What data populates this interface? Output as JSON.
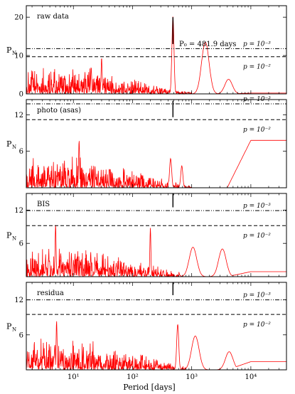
{
  "chart_data": {
    "type": "line",
    "shared_xaxis": {
      "label": "Period [days]",
      "scale": "log",
      "xlim": [
        1.6,
        40000
      ],
      "tick_labels": [
        "10¹",
        "10²",
        "10³",
        "10⁴"
      ],
      "tick_values": [
        10,
        100,
        1000,
        10000
      ]
    },
    "ylabel": "P",
    "ylabel_sub": "N",
    "line_color": "#ff0000",
    "p3_label": "p = 10⁻³",
    "p2_label": "p = 10⁻²",
    "marker_period": 481.9,
    "annotation": "P₀ = 481.9 days",
    "panels": [
      {
        "label": "raw data",
        "ylim": [
          0,
          23
        ],
        "yticks": [
          0,
          10,
          20
        ],
        "ytick_labels": [
          "0",
          "10",
          "20"
        ],
        "p3_level": 11.8,
        "p2_level": 9.7,
        "marker_range": [
          13,
          20
        ],
        "peaks": [
          {
            "period": 481.9,
            "power": 20.2
          },
          {
            "period": 1700,
            "power": 13.5
          },
          {
            "period": 4200,
            "power": 3.8
          },
          {
            "period": 30,
            "power": 9.5
          },
          {
            "period": 20,
            "power": 7.0
          }
        ],
        "noise_max": 7.5,
        "tail_level": 0.2
      },
      {
        "label": "photo (asas)",
        "ylim": [
          0,
          14.5
        ],
        "yticks": [
          6,
          12
        ],
        "ytick_labels": [
          "6",
          "12"
        ],
        "p3_level": 13.8,
        "p2_level": 11.2,
        "marker_range": [
          11.6,
          14.3
        ],
        "peaks": [
          {
            "period": 12.5,
            "power": 7.8
          },
          {
            "period": 440,
            "power": 4.8
          },
          {
            "period": 680,
            "power": 3.6
          }
        ],
        "noise_max": 5.5,
        "tail_level": 7.8
      },
      {
        "label": "BIS",
        "ylim": [
          0,
          15
        ],
        "yticks": [
          6,
          12
        ],
        "ytick_labels": [
          "6",
          "12"
        ],
        "p3_level": 11.9,
        "p2_level": 9.2,
        "marker_range": [
          12.5,
          15
        ],
        "peaks": [
          {
            "period": 200,
            "power": 8.8
          },
          {
            "period": 1050,
            "power": 5.3
          },
          {
            "period": 3300,
            "power": 5.0
          },
          {
            "period": 5,
            "power": 9.4
          }
        ],
        "noise_max": 5.5,
        "tail_level": 0.9
      },
      {
        "label": "residua",
        "ylim": [
          0,
          15
        ],
        "yticks": [
          6,
          12
        ],
        "ytick_labels": [
          "6",
          "12"
        ],
        "p3_level": 12.0,
        "p2_level": 9.5,
        "marker_range": [
          12.8,
          15
        ],
        "peaks": [
          {
            "period": 580,
            "power": 7.8
          },
          {
            "period": 1150,
            "power": 5.8
          },
          {
            "period": 4300,
            "power": 3.1
          },
          {
            "period": 5.2,
            "power": 8.4
          }
        ],
        "noise_max": 5.5,
        "tail_level": 1.4
      }
    ]
  }
}
